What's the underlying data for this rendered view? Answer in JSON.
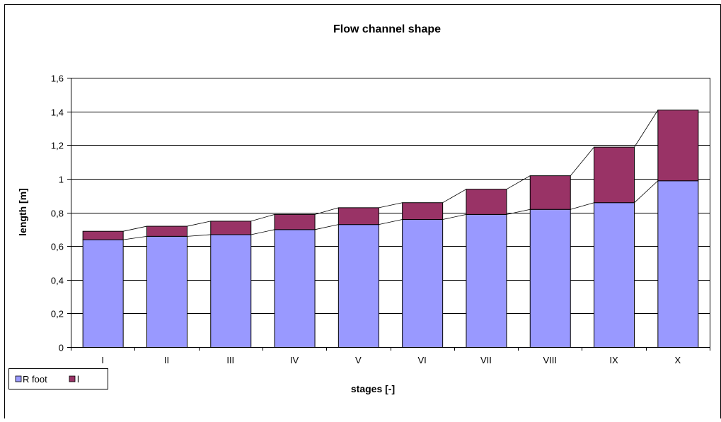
{
  "chart_data": {
    "type": "bar",
    "stacked": true,
    "title": "Flow channel shape",
    "xlabel": "stages [-]",
    "ylabel": "length  [m]",
    "categories": [
      "I",
      "II",
      "III",
      "IV",
      "V",
      "VI",
      "VII",
      "VIII",
      "IX",
      "X"
    ],
    "series": [
      {
        "name": "R foot",
        "color": "#9999ff",
        "values": [
          0.64,
          0.66,
          0.67,
          0.7,
          0.73,
          0.76,
          0.79,
          0.82,
          0.86,
          0.99
        ]
      },
      {
        "name": "l",
        "color": "#993366",
        "values": [
          0.05,
          0.06,
          0.08,
          0.09,
          0.1,
          0.1,
          0.15,
          0.2,
          0.33,
          0.42
        ]
      }
    ],
    "ylim": [
      0,
      1.6
    ],
    "yticks": [
      "0",
      "0,2",
      "0,4",
      "0,6",
      "0,8",
      "1",
      "1,2",
      "1,4",
      "1,6"
    ],
    "grid": true,
    "series_lines": true,
    "legend_position": "bottom-left"
  }
}
